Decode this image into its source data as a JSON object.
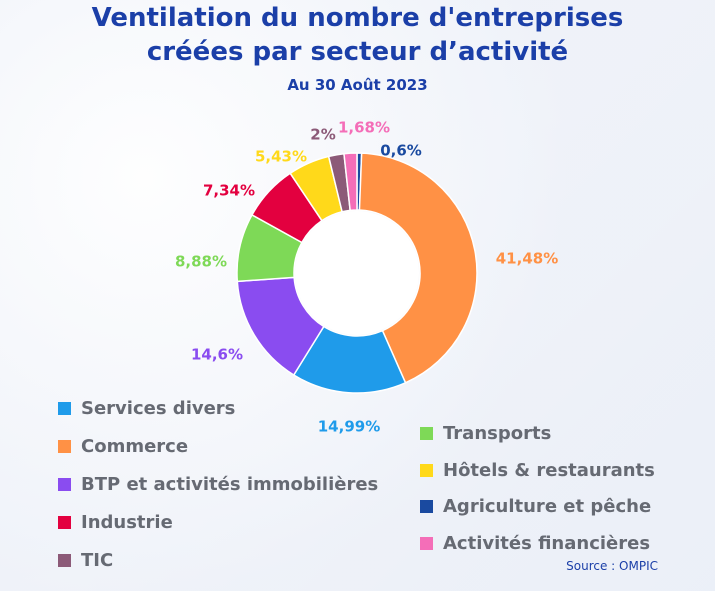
{
  "header": {
    "title_line1": "Ventilation du nombre d'entreprises",
    "title_line2": "créées par secteur d’activité",
    "subtitle": "Au 30 Août 2023"
  },
  "source": "Source : OMPIC",
  "chart_data": {
    "type": "pie",
    "donut": true,
    "slices": [
      {
        "name": "Agriculture et pêche",
        "value": 0.6,
        "label": "0,6%",
        "color": "#1a4aa0"
      },
      {
        "name": "Commerce",
        "value": 41.48,
        "label": "41,48%",
        "color": "#ff9145"
      },
      {
        "name": "Services divers",
        "value": 14.99,
        "label": "14,99%",
        "color": "#1f9bea"
      },
      {
        "name": "BTP et activités immobilières",
        "value": 14.6,
        "label": "14,6%",
        "color": "#8a4cf0"
      },
      {
        "name": "Transports",
        "value": 8.88,
        "label": "8,88%",
        "color": "#7ed957"
      },
      {
        "name": "Industrie",
        "value": 7.34,
        "label": "7,34%",
        "color": "#e3003f"
      },
      {
        "name": "Hôtels & restaurants",
        "value": 5.43,
        "label": "5,43%",
        "color": "#ffd91a"
      },
      {
        "name": "TIC",
        "value": 2,
        "label": "2%",
        "color": "#8c5a78"
      },
      {
        "name": "Activités financières",
        "value": 1.68,
        "label": "1,68%",
        "color": "#f46eb8"
      }
    ],
    "legend_left": [
      "Services divers",
      "Commerce",
      "BTP et activités immobilières",
      "Industrie",
      "TIC"
    ],
    "legend_right": [
      "Transports",
      "Hôtels & restaurants",
      "Agriculture et pêche",
      "Activités financières"
    ]
  }
}
